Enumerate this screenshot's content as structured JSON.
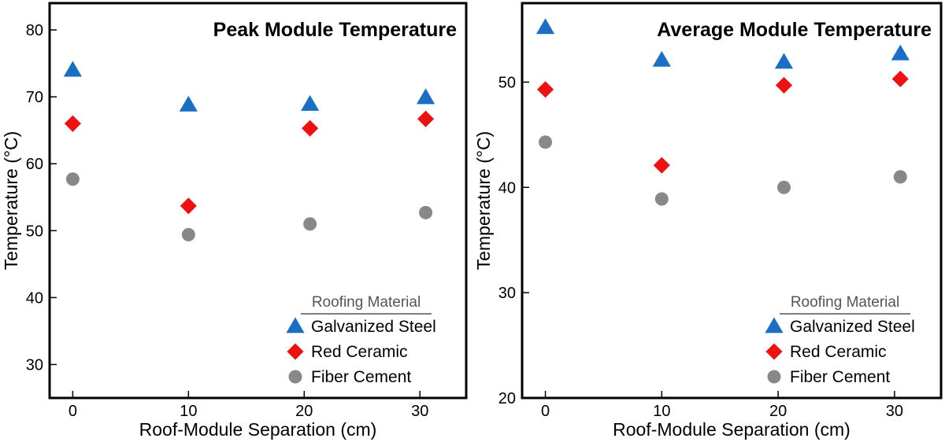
{
  "chart_data": [
    {
      "type": "scatter",
      "title": "Peak Module Temperature",
      "xlabel": "Roof-Module Separation (cm)",
      "ylabel": "Temperature (°C)",
      "xlim": [
        -2,
        34
      ],
      "ylim": [
        25,
        84
      ],
      "x_ticks": [
        0,
        10,
        20,
        30
      ],
      "x_tick_labels": [
        "0",
        "10",
        "20",
        "30"
      ],
      "y_ticks": [
        30,
        40,
        50,
        60,
        70,
        80
      ],
      "y_tick_labels": [
        "30",
        "40",
        "50",
        "60",
        "70",
        "80"
      ],
      "legend_title": "Roofing Material",
      "legend_position": "bottom-right",
      "series": [
        {
          "name": "Galvanized Steel",
          "marker": "triangle",
          "color": "#1a6fc4",
          "x": [
            0,
            10,
            20.5,
            30.5
          ],
          "y": [
            74,
            68.8,
            68.9,
            69.9
          ]
        },
        {
          "name": "Red Ceramic",
          "marker": "diamond",
          "color": "#ee1111",
          "x": [
            0,
            10,
            20.5,
            30.5
          ],
          "y": [
            66,
            53.7,
            65.3,
            66.7
          ]
        },
        {
          "name": "Fiber Cement",
          "marker": "circle",
          "color": "#888888",
          "x": [
            0,
            10,
            20.5,
            30.5
          ],
          "y": [
            57.7,
            49.4,
            51,
            52.7
          ]
        }
      ]
    },
    {
      "type": "scatter",
      "title": "Average Module Temperature",
      "xlabel": "Roof-Module Separation (cm)",
      "ylabel": "Temperature (°C)",
      "xlim": [
        -2,
        34
      ],
      "ylim": [
        20,
        57.5
      ],
      "x_ticks": [
        0,
        10,
        20,
        30
      ],
      "x_tick_labels": [
        "0",
        "10",
        "20",
        "30"
      ],
      "y_ticks": [
        20,
        30,
        40,
        50
      ],
      "y_tick_labels": [
        "20",
        "30",
        "40",
        "50"
      ],
      "legend_title": "Roofing Material",
      "legend_position": "bottom-right",
      "series": [
        {
          "name": "Galvanized Steel",
          "marker": "triangle",
          "color": "#1a6fc4",
          "x": [
            0,
            10,
            20.5,
            30.5
          ],
          "y": [
            55.2,
            52.1,
            51.9,
            52.7
          ]
        },
        {
          "name": "Red Ceramic",
          "marker": "diamond",
          "color": "#ee1111",
          "x": [
            0,
            10,
            20.5,
            30.5
          ],
          "y": [
            49.3,
            42.1,
            49.7,
            50.3
          ]
        },
        {
          "name": "Fiber Cement",
          "marker": "circle",
          "color": "#888888",
          "x": [
            0,
            10,
            20.5,
            30.5
          ],
          "y": [
            44.3,
            38.9,
            40,
            41
          ]
        }
      ]
    }
  ]
}
